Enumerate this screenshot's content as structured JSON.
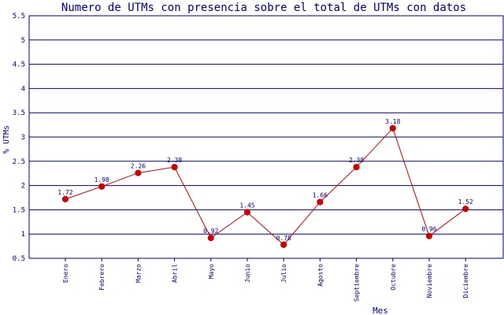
{
  "chart_data": {
    "type": "line",
    "title": "Numero de UTMs con presencia sobre el total de UTMs con datos",
    "xlabel": "Mes",
    "ylabel": "% UTMs",
    "ylim": [
      0.5,
      5.5
    ],
    "yticks": [
      "0.5",
      "1",
      "1.5",
      "2",
      "2.5",
      "3",
      "3.5",
      "4",
      "4.5",
      "5",
      "5.5"
    ],
    "grid": "horizontal",
    "categories": [
      "Enero",
      "Febrero",
      "Marzo",
      "Abril",
      "Mayo",
      "Junio",
      "Julio",
      "Agosto",
      "Septiembre",
      "Octubre",
      "Noviembre",
      "Diciembre"
    ],
    "values": [
      1.72,
      1.98,
      2.26,
      2.38,
      0.92,
      1.45,
      0.78,
      1.66,
      2.38,
      3.18,
      0.96,
      1.52
    ],
    "value_labels": [
      "1.72",
      "1.98",
      "2.26",
      "2.38",
      "0.92",
      "1.45",
      "0.78",
      "1.66",
      "2.38",
      "3.18",
      "0.96",
      "1.52"
    ],
    "colors": {
      "title": "#000080",
      "axis_text": "#000080",
      "line": "#cc0000",
      "marker": "#cc0000",
      "grid": "#000080"
    }
  }
}
